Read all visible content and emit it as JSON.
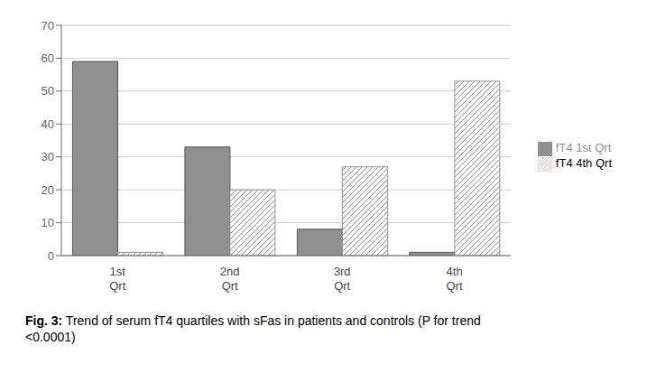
{
  "chart_data": {
    "type": "bar",
    "categories": [
      "1st\nQrt",
      "2nd\nQrt",
      "3rd\nQrt",
      "4th\nQrt"
    ],
    "series": [
      {
        "name": "fT4 1st Qrt",
        "color": "#909090",
        "values": [
          59,
          33,
          8,
          1
        ]
      },
      {
        "name": "fT4 4th Qrt",
        "color": "#ffffff",
        "values": [
          1,
          20,
          27,
          53
        ]
      }
    ],
    "ylim": [
      0,
      70
    ],
    "yticks": [
      0,
      10,
      20,
      30,
      40,
      50,
      60,
      70
    ],
    "grid": true,
    "legend": "right",
    "annotations": [
      "Fig. 3:",
      " Trend of serum fT4 quartiles with sFas in patients and controls (P for trend\n<0.0001)"
    ]
  }
}
